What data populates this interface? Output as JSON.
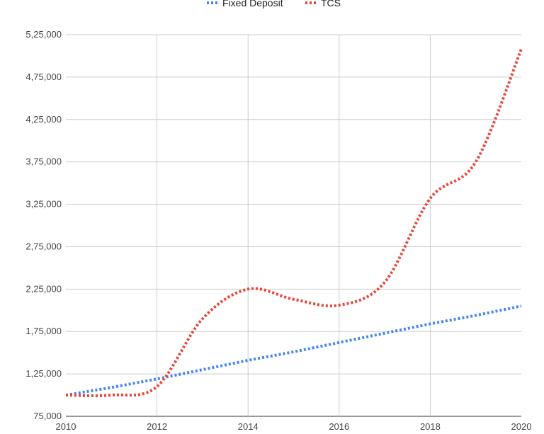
{
  "chart_data": {
    "type": "line",
    "x": [
      2010,
      2011,
      2012,
      2013,
      2014,
      2015,
      2016,
      2017,
      2018,
      2019,
      2020
    ],
    "series": [
      {
        "name": "Fixed Deposit",
        "color": "#4285f4",
        "style": "dotted",
        "values": [
          100000,
          109000,
          119000,
          130000,
          141000,
          151000,
          162000,
          173000,
          184000,
          194000,
          205000
        ]
      },
      {
        "name": "TCS",
        "color": "#ea4335",
        "style": "dotted",
        "smooth": true,
        "values": [
          100000,
          100000,
          110000,
          190000,
          225000,
          213000,
          206000,
          233000,
          332000,
          375000,
          508000
        ]
      }
    ],
    "y_ticks": [
      "75,000",
      "1,25,000",
      "1,75,000",
      "2,25,000",
      "2,75,000",
      "3,25,000",
      "3,75,000",
      "4,25,000",
      "4,75,000",
      "5,25,000"
    ],
    "x_ticks": [
      "2010",
      "2012",
      "2014",
      "2016",
      "2018",
      "2020"
    ],
    "ylim": [
      75000,
      525000
    ],
    "xlim": [
      2010,
      2020
    ],
    "grid": true,
    "legend_position": "top-center",
    "title": "",
    "xlabel": "",
    "ylabel": ""
  }
}
